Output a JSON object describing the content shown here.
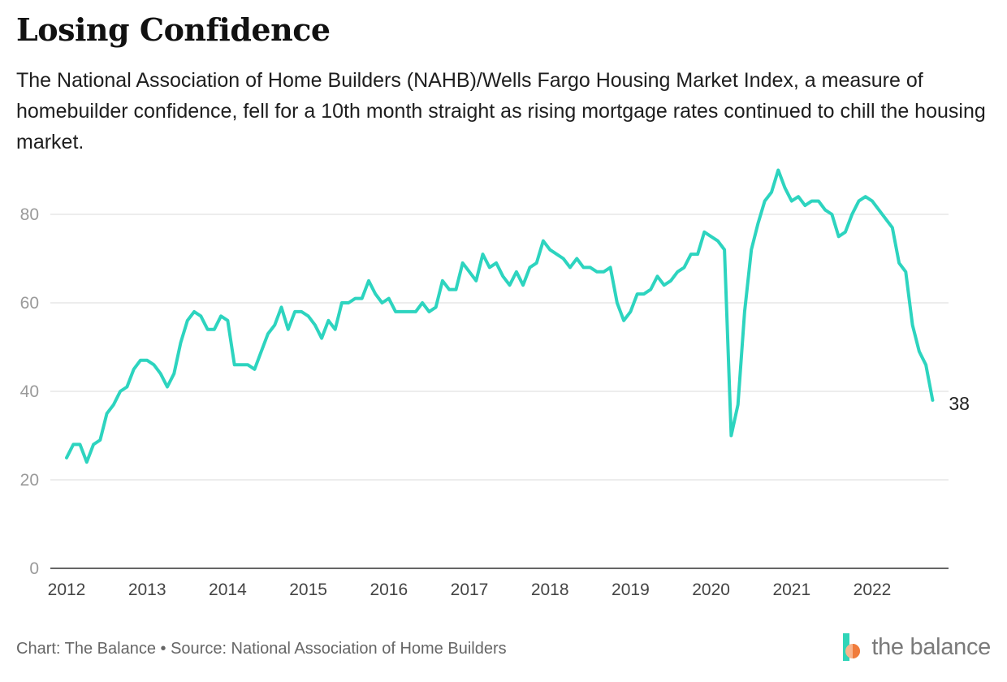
{
  "header": {
    "title": "Losing Confidence",
    "subtitle": "The National Association of Home Builders (NAHB)/Wells Fargo Housing Market Index, a measure of homebuilder confidence, fell for a 10th month straight as rising mortgage rates continued to chill the housing market."
  },
  "footer": {
    "credit": "Chart: The Balance • Source: National Association of Home Builders"
  },
  "logo": {
    "text": "the balance",
    "colors": {
      "teal": "#2fd5b8",
      "peach": "#f8b48c",
      "orange": "#f07c3c"
    }
  },
  "chart_data": {
    "type": "line",
    "title": "Losing Confidence",
    "xlabel": "",
    "ylabel": "",
    "ylim": [
      0,
      90
    ],
    "yticks": [
      0,
      20,
      40,
      60,
      80
    ],
    "xticks": [
      "2012",
      "2013",
      "2014",
      "2015",
      "2016",
      "2017",
      "2018",
      "2019",
      "2020",
      "2021",
      "2022"
    ],
    "grid": "horizontal",
    "line_color": "#2dd4bf",
    "end_label": "38",
    "series": [
      {
        "start": "2012-01",
        "frequency": "monthly",
        "values": [
          25,
          28,
          28,
          24,
          28,
          29,
          35,
          37,
          40,
          41,
          45,
          47,
          47,
          46,
          44,
          41,
          44,
          51,
          56,
          58,
          57,
          54,
          54,
          57,
          56,
          46,
          46,
          46,
          45,
          49,
          53,
          55,
          59,
          54,
          58,
          58,
          57,
          55,
          52,
          56,
          54,
          60,
          60,
          61,
          61,
          65,
          62,
          60,
          61,
          58,
          58,
          58,
          58,
          60,
          58,
          59,
          65,
          63,
          63,
          69,
          67,
          65,
          71,
          68,
          69,
          66,
          64,
          67,
          64,
          68,
          69,
          74,
          72,
          71,
          70,
          68,
          70,
          68,
          68,
          67,
          67,
          68,
          60,
          56,
          58,
          62,
          62,
          63,
          66,
          64,
          65,
          67,
          68,
          71,
          71,
          76,
          75,
          74,
          72,
          30,
          37,
          58,
          72,
          78,
          83,
          85,
          90,
          86,
          83,
          84,
          82,
          83,
          83,
          81,
          80,
          75,
          76,
          80,
          83,
          84,
          83,
          81,
          79,
          77,
          69,
          67,
          55,
          49,
          46,
          38
        ]
      }
    ]
  }
}
